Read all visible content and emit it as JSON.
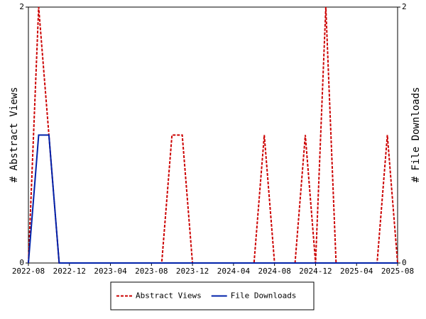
{
  "chart_data": {
    "type": "line",
    "categories": [
      "2022-08",
      null,
      null,
      null,
      "2022-12",
      null,
      null,
      null,
      "2023-04",
      null,
      null,
      null,
      "2023-08",
      null,
      null,
      null,
      "2023-12",
      null,
      null,
      null,
      "2024-04",
      null,
      null,
      null,
      "2024-08",
      null,
      null,
      null,
      "2024-12",
      null,
      null,
      null,
      "2025-04",
      null,
      null,
      null,
      "2025-08"
    ],
    "series": [
      {
        "name": "Abstract Views",
        "color": "#cc0000",
        "dash": true,
        "values": [
          0,
          2,
          1,
          0,
          0,
          0,
          0,
          0,
          0,
          0,
          0,
          0,
          0,
          0,
          1,
          1,
          0,
          0,
          0,
          0,
          0,
          0,
          0,
          1,
          0,
          0,
          0,
          1,
          0,
          2,
          0,
          0,
          0,
          0,
          0,
          1,
          0
        ]
      },
      {
        "name": "File Downloads",
        "color": "#0022aa",
        "axis": "y2",
        "values": [
          0,
          1,
          1,
          0,
          0,
          0,
          0,
          0,
          0,
          0,
          0,
          0,
          0,
          0,
          0,
          0,
          0,
          0,
          0,
          0,
          0,
          0,
          0,
          0,
          0,
          0,
          0,
          0,
          0,
          0,
          0,
          0,
          0,
          0,
          0,
          0,
          0
        ]
      }
    ],
    "y_label": "# Abstract Views",
    "y2_label": "# File Downloads",
    "ylim": [
      0,
      2
    ],
    "yticks": [
      0,
      2
    ],
    "y2lim": [
      0,
      2
    ],
    "y2ticks": [
      0,
      2
    ],
    "legend": "bottom"
  }
}
